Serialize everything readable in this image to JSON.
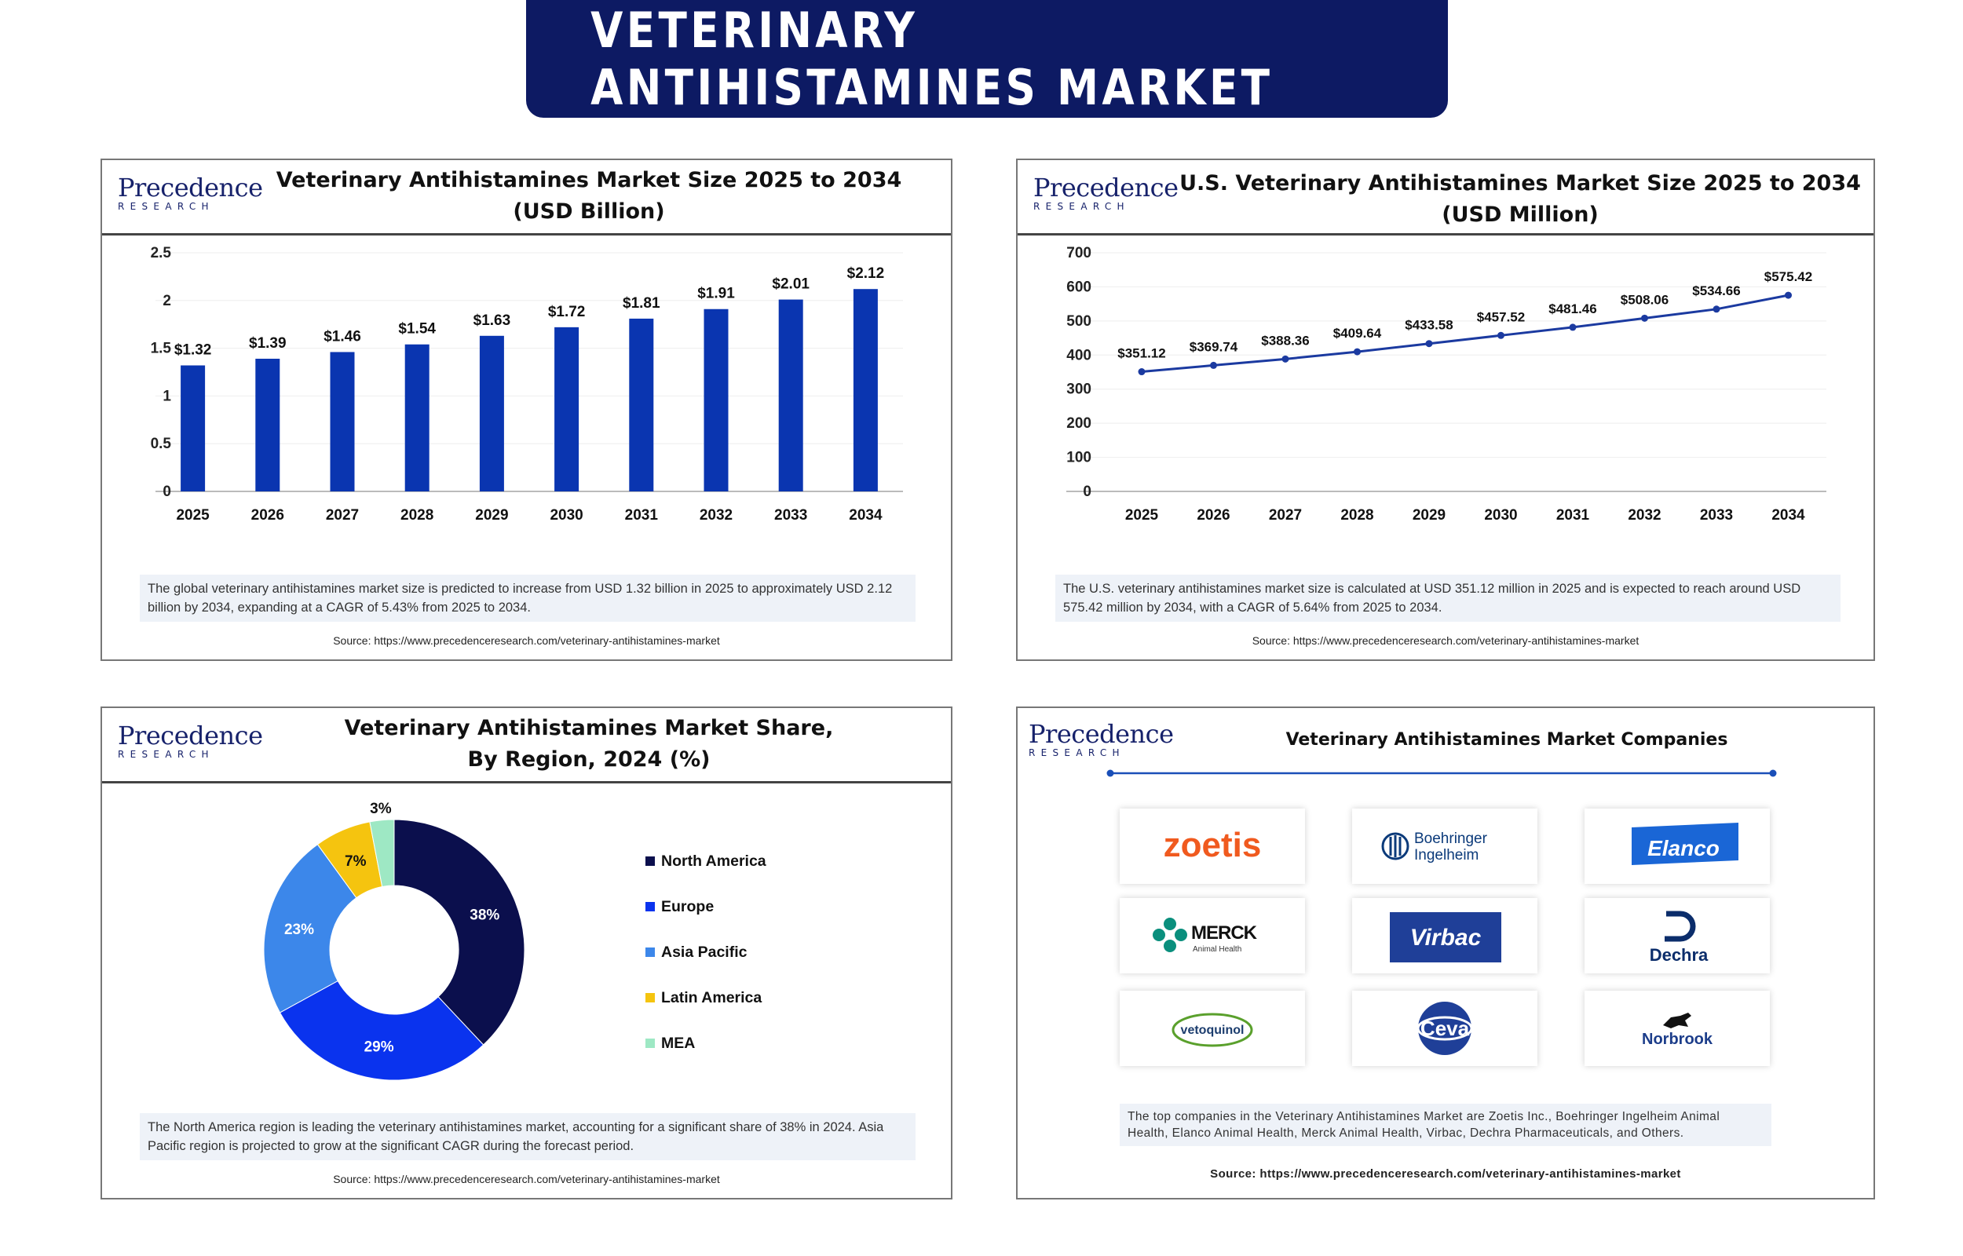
{
  "banner": {
    "title": "VETERINARY ANTIHISTAMINES MARKET"
  },
  "brand": {
    "name": "Precedence",
    "sub": "RESEARCH",
    "color": "#17226b"
  },
  "panel1": {
    "title_line1": "Veterinary Antihistamines Market Size 2025 to 2034",
    "title_line2": "(USD Billion)",
    "note": "The global veterinary antihistamines market size is predicted to increase from USD 1.32 billion in 2025 to approximately USD 2.12 billion by 2034, expanding at a CAGR of 5.43% from 2025 to 2034.",
    "source": "Source: https://www.precedenceresearch.com/veterinary-antihistamines-market"
  },
  "panel2": {
    "title_line1": "U.S. Veterinary Antihistamines Market Size 2025 to 2034",
    "title_line2": "(USD Million)",
    "note": "The U.S. veterinary antihistamines market size is calculated at USD 351.12 million in 2025 and is expected to reach around USD 575.42 million by 2034, with a CAGR of 5.64% from 2025 to 2034.",
    "source": "Source: https://www.precedenceresearch.com/veterinary-antihistamines-market"
  },
  "panel3": {
    "title_line1": "Veterinary Antihistamines Market  Share,",
    "title_line2": "By Region, 2024 (%)",
    "note": "The North America region is leading the veterinary antihistamines market, accounting for a significant share of 38% in 2024. Asia Pacific region is projected to grow at the significant CAGR during the forecast period.",
    "source": "Source: https://www.precedenceresearch.com/veterinary-antihistamines-market"
  },
  "panel4": {
    "title": "Veterinary Antihistamines Market Companies",
    "companies": [
      {
        "name": "zoetis",
        "icon": "zoetis-logo"
      },
      {
        "name": "Boehringer Ingelheim",
        "line1": "Boehringer",
        "line2": "Ingelheim",
        "icon": "boehringer-logo"
      },
      {
        "name": "Elanco",
        "icon": "elanco-logo"
      },
      {
        "name": "MERCK",
        "sub": "Animal Health",
        "icon": "merck-logo"
      },
      {
        "name": "Virbac",
        "icon": "virbac-logo"
      },
      {
        "name": "Dechra",
        "icon": "dechra-logo"
      },
      {
        "name": "vetoquinol",
        "icon": "vetoquinol-logo"
      },
      {
        "name": "Ceva",
        "icon": "ceva-logo"
      },
      {
        "name": "Norbrook",
        "icon": "norbrook-logo"
      }
    ],
    "note": "The top companies in the Veterinary Antihistamines Market are Zoetis Inc., Boehringer Ingelheim Animal Health, Elanco Animal Health, Merck Animal Health, Virbac, Dechra Pharmaceuticals, and Others.",
    "source": "Source: https://www.precedenceresearch.com/veterinary-antihistamines-market"
  },
  "chart_data": [
    {
      "type": "bar",
      "title": "Veterinary Antihistamines Market Size 2025 to 2034 (USD Billion)",
      "categories": [
        "2025",
        "2026",
        "2027",
        "2028",
        "2029",
        "2030",
        "2031",
        "2032",
        "2033",
        "2034"
      ],
      "values": [
        1.32,
        1.39,
        1.46,
        1.54,
        1.63,
        1.72,
        1.81,
        1.91,
        2.01,
        2.12
      ],
      "data_labels": [
        "$1.32",
        "$1.39",
        "$1.46",
        "$1.54",
        "$1.63",
        "$1.72",
        "$1.81",
        "$1.91",
        "$2.01",
        "$2.12"
      ],
      "yticks": [
        "0",
        "0.5",
        "1",
        "1.5",
        "2",
        "2.5"
      ],
      "ylim": [
        0,
        2.5
      ],
      "xlabel": "",
      "ylabel": "",
      "grid": true,
      "color": "#0a35b0"
    },
    {
      "type": "line",
      "title": "U.S. Veterinary Antihistamines Market Size 2025 to 2034 (USD Million)",
      "categories": [
        "2025",
        "2026",
        "2027",
        "2028",
        "2029",
        "2030",
        "2031",
        "2032",
        "2033",
        "2034"
      ],
      "values": [
        351.12,
        369.74,
        388.36,
        409.64,
        433.58,
        457.52,
        481.46,
        508.06,
        534.66,
        575.42
      ],
      "data_labels": [
        "$351.12",
        "$369.74",
        "$388.36",
        "$409.64",
        "$433.58",
        "$457.52",
        "$481.46",
        "$508.06",
        "$534.66",
        "$575.42"
      ],
      "yticks": [
        "0",
        "100",
        "200",
        "300",
        "400",
        "500",
        "600",
        "700"
      ],
      "ylim": [
        0,
        700
      ],
      "xlabel": "",
      "ylabel": "",
      "grid": true,
      "color": "#1b3aa0"
    },
    {
      "type": "pie",
      "title": "Veterinary Antihistamines Market Share, By Region, 2024 (%)",
      "donut": true,
      "legend": "right",
      "slices": [
        {
          "label": "North America",
          "value": 38,
          "display": "38%",
          "color": "#0b0f4d"
        },
        {
          "label": "Europe",
          "value": 29,
          "display": "29%",
          "color": "#0a33ee"
        },
        {
          "label": "Asia Pacific",
          "value": 23,
          "display": "23%",
          "color": "#3c87ea"
        },
        {
          "label": "Latin America",
          "value": 7,
          "display": "7%",
          "color": "#f5c40f"
        },
        {
          "label": "MEA",
          "value": 3,
          "display": "3%",
          "color": "#9ee8c4"
        }
      ]
    }
  ]
}
